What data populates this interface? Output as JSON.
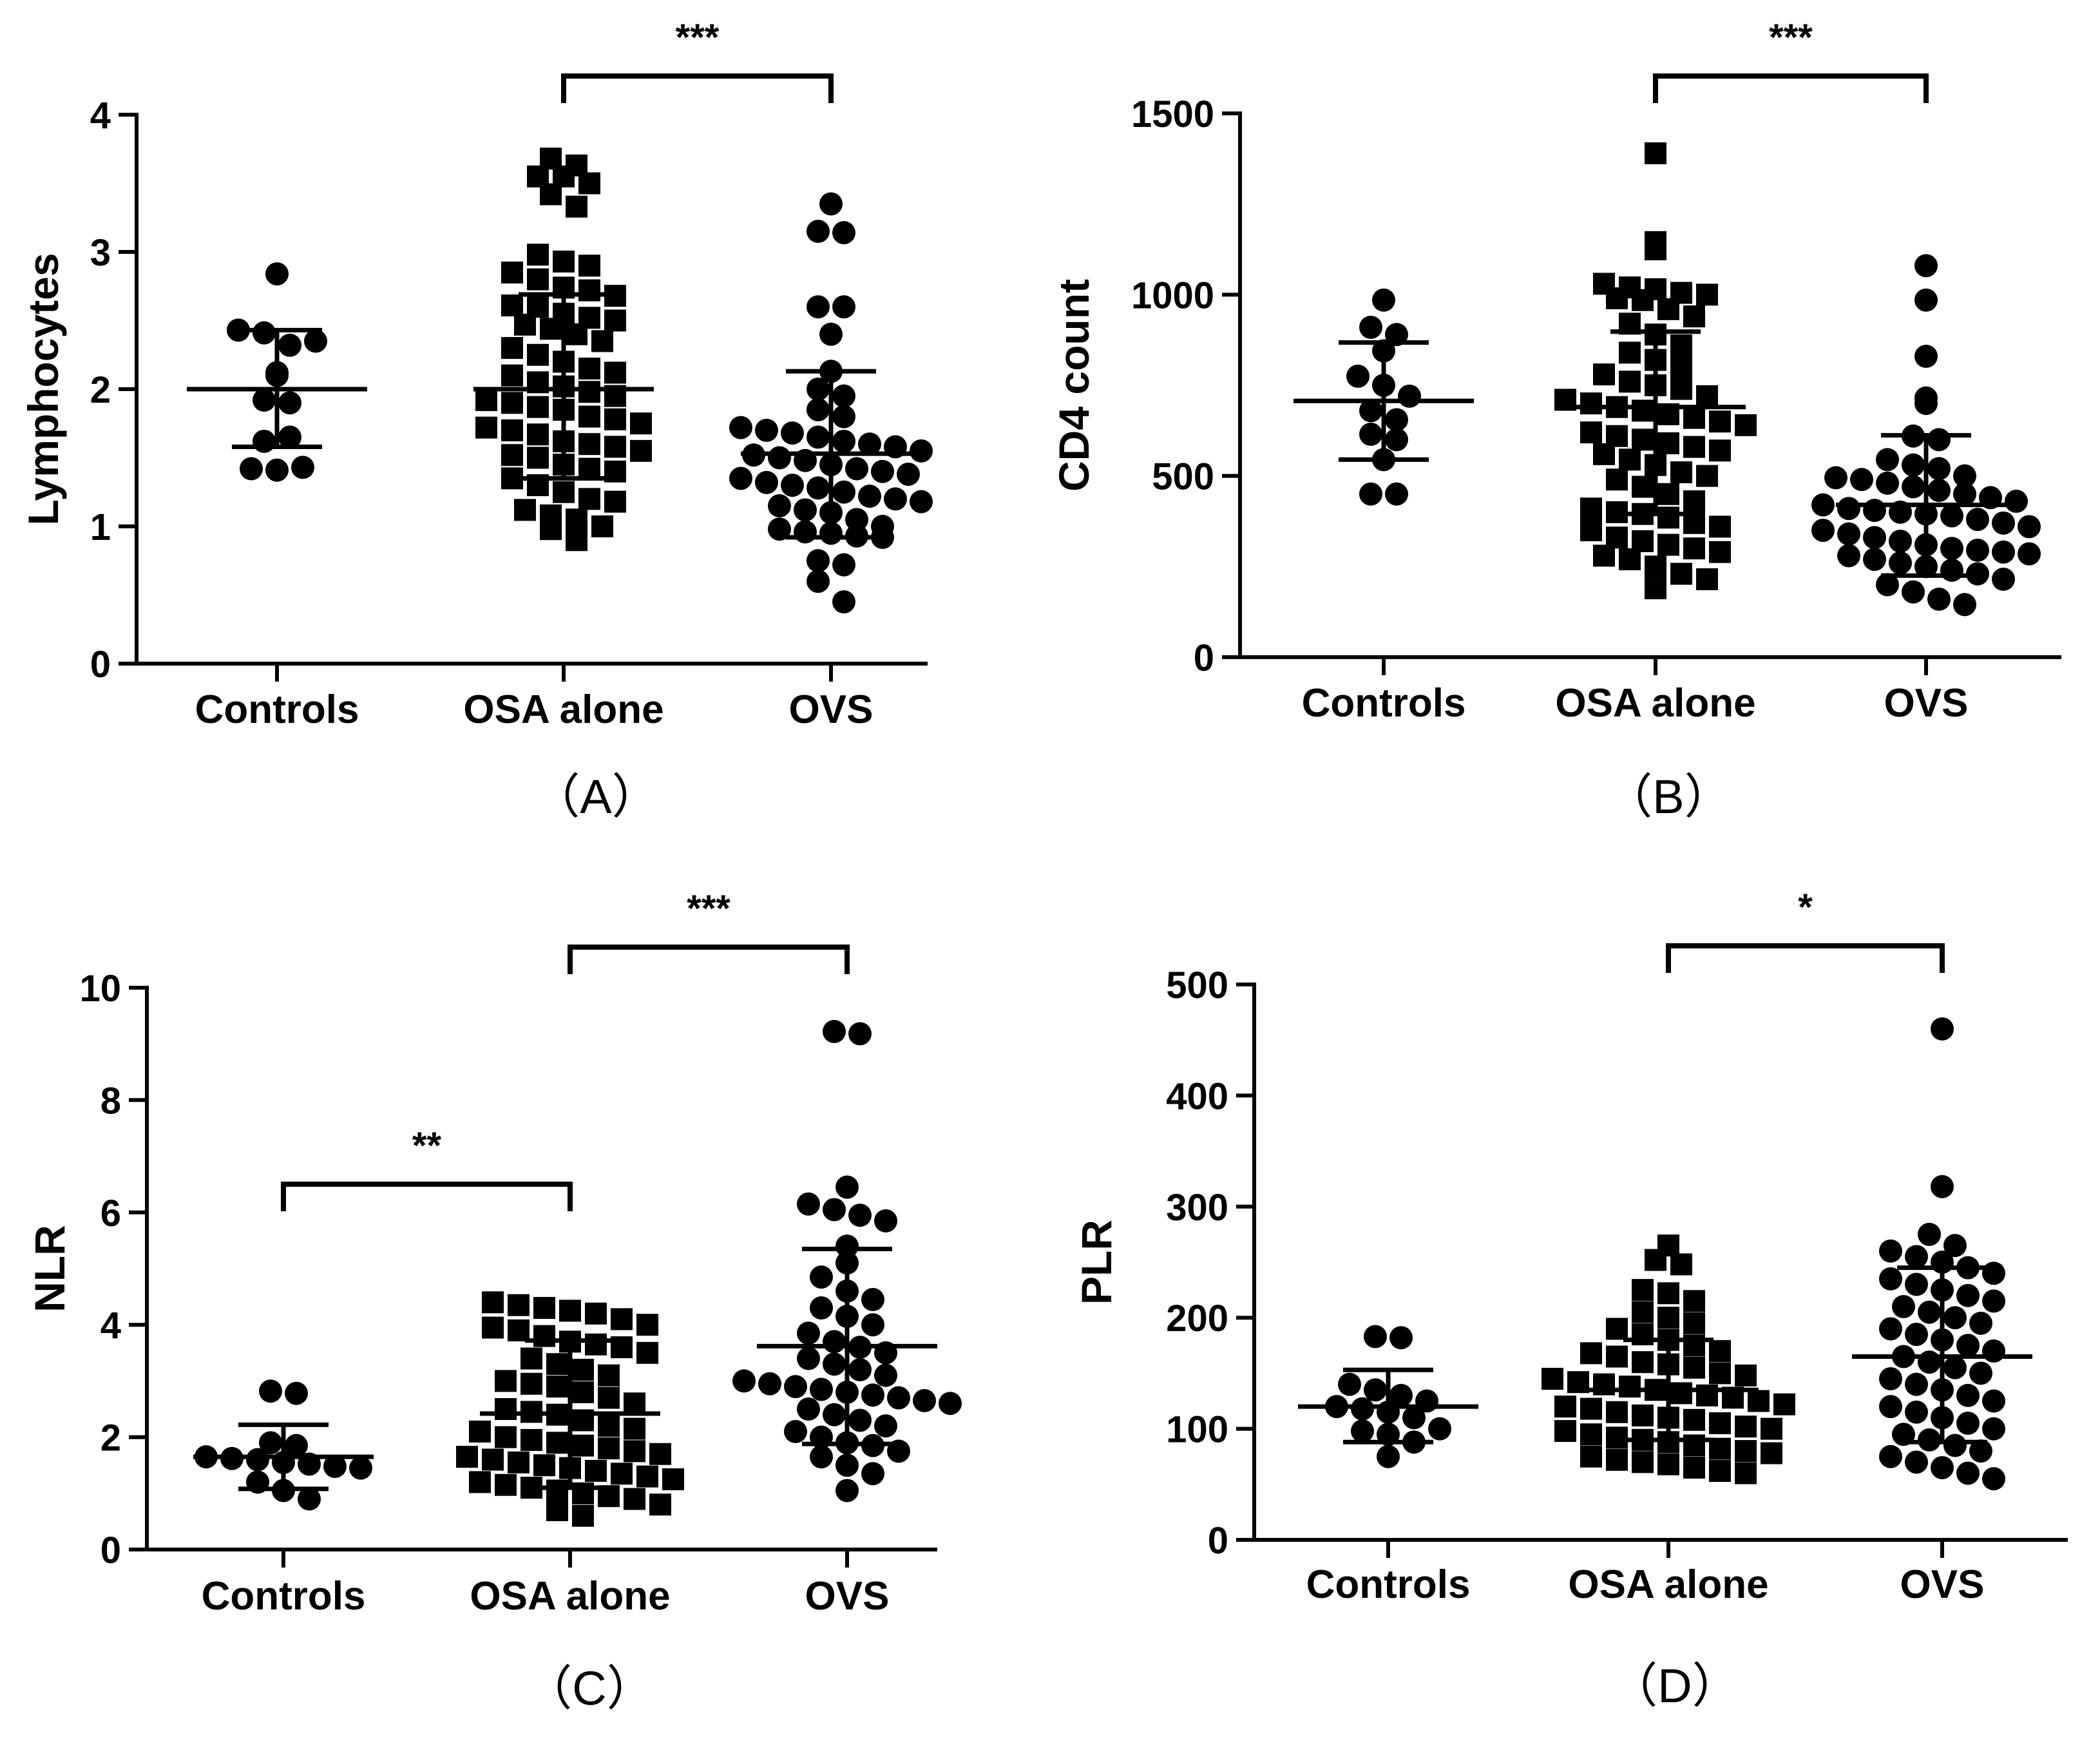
{
  "chart_data": [
    {
      "panel": "A",
      "panel_label": "（A）",
      "type": "scatter",
      "ylabel": "Lymphocytes",
      "ylim": [
        0,
        4
      ],
      "yticks": [
        "0",
        "1",
        "2",
        "3",
        "4"
      ],
      "categories": [
        "Controls",
        "OSA alone",
        "OVS"
      ],
      "markers": [
        "circle",
        "square",
        "circle"
      ],
      "groups": [
        {
          "name": "Controls",
          "mean": 2.0,
          "sd_low": 1.58,
          "sd_high": 2.43,
          "values": [
            2.84,
            2.43,
            2.41,
            2.32,
            2.35,
            2.12,
            2.1,
            1.92,
            1.9,
            1.62,
            1.65,
            1.42,
            1.41,
            1.43
          ]
        },
        {
          "name": "OSA alone",
          "mean": 2.0,
          "sd_low": 1.35,
          "sd_high": 2.69,
          "values": [
            3.68,
            3.63,
            3.55,
            3.55,
            3.5,
            3.42,
            3.33,
            2.98,
            2.93,
            2.9,
            2.85,
            2.8,
            2.74,
            2.72,
            2.68,
            2.61,
            2.6,
            2.55,
            2.52,
            2.5,
            2.47,
            2.44,
            2.4,
            2.35,
            2.3,
            2.25,
            2.2,
            2.15,
            2.12,
            2.1,
            2.05,
            2.02,
            1.98,
            1.95,
            1.92,
            1.9,
            1.87,
            1.85,
            1.8,
            1.78,
            1.75,
            1.72,
            1.7,
            1.67,
            1.62,
            1.6,
            1.58,
            1.55,
            1.52,
            1.5,
            1.45,
            1.42,
            1.4,
            1.35,
            1.3,
            1.25,
            1.2,
            1.18,
            1.12,
            1.08,
            1.05,
            1.0,
            0.98,
            0.9
          ]
        },
        {
          "name": "OVS",
          "mean": 1.53,
          "sd_low": 0.92,
          "sd_high": 2.13,
          "values": [
            3.35,
            3.15,
            3.14,
            2.6,
            2.6,
            2.4,
            2.13,
            2.0,
            1.95,
            1.85,
            1.8,
            1.72,
            1.7,
            1.68,
            1.65,
            1.62,
            1.6,
            1.58,
            1.55,
            1.52,
            1.5,
            1.48,
            1.45,
            1.42,
            1.4,
            1.38,
            1.35,
            1.32,
            1.3,
            1.28,
            1.25,
            1.22,
            1.2,
            1.18,
            1.15,
            1.12,
            1.1,
            1.05,
            1.0,
            0.98,
            0.96,
            0.95,
            0.93,
            0.92,
            0.75,
            0.72,
            0.6,
            0.45
          ]
        }
      ],
      "comparisons": [
        {
          "from": "OSA alone",
          "to": "OVS",
          "label": "***"
        }
      ]
    },
    {
      "panel": "B",
      "panel_label": "（B）",
      "type": "scatter",
      "ylabel": "CD4 count",
      "ylim": [
        0,
        1500
      ],
      "yticks": [
        "0",
        "500",
        "1000",
        "1500"
      ],
      "categories": [
        "Controls",
        "OSA alone",
        "OVS"
      ],
      "markers": [
        "circle",
        "square",
        "circle"
      ],
      "groups": [
        {
          "name": "Controls",
          "mean": 707,
          "sd_low": 545,
          "sd_high": 868,
          "values": [
            985,
            910,
            890,
            845,
            775,
            750,
            720,
            680,
            655,
            615,
            600,
            545,
            450,
            450
          ]
        },
        {
          "name": "OSA alone",
          "mean": 690,
          "sd_low": 395,
          "sd_high": 898,
          "values": [
            1390,
            1145,
            1125,
            1030,
            1020,
            1015,
            1005,
            1000,
            990,
            985,
            960,
            940,
            920,
            890,
            860,
            840,
            820,
            800,
            780,
            760,
            750,
            740,
            720,
            710,
            700,
            690,
            680,
            670,
            660,
            650,
            640,
            620,
            610,
            600,
            590,
            580,
            570,
            560,
            545,
            530,
            510,
            500,
            490,
            470,
            450,
            430,
            410,
            400,
            395,
            385,
            370,
            360,
            350,
            330,
            320,
            310,
            300,
            290,
            280,
            270,
            250,
            230,
            215,
            190
          ]
        },
        {
          "name": "OVS",
          "mean": 420,
          "sd_low": 225,
          "sd_high": 612,
          "values": [
            1080,
            985,
            830,
            715,
            700,
            610,
            600,
            545,
            530,
            520,
            500,
            495,
            490,
            480,
            470,
            460,
            450,
            440,
            430,
            420,
            410,
            405,
            400,
            395,
            390,
            380,
            370,
            360,
            350,
            340,
            330,
            320,
            310,
            300,
            295,
            290,
            285,
            280,
            270,
            260,
            250,
            240,
            230,
            215,
            200,
            180,
            160,
            145
          ]
        }
      ],
      "comparisons": [
        {
          "from": "OSA alone",
          "to": "OVS",
          "label": "***"
        }
      ]
    },
    {
      "panel": "C",
      "panel_label": "（C）",
      "type": "scatter",
      "ylabel": "NLR",
      "ylim": [
        0,
        10
      ],
      "yticks": [
        "0",
        "2",
        "4",
        "6",
        "8",
        "10"
      ],
      "categories": [
        "Controls",
        "OSA alone",
        "OVS"
      ],
      "markers": [
        "circle",
        "square",
        "circle"
      ],
      "groups": [
        {
          "name": "Controls",
          "mean": 1.65,
          "sd_low": 1.08,
          "sd_high": 2.22,
          "values": [
            2.82,
            2.78,
            1.9,
            1.85,
            1.65,
            1.62,
            1.6,
            1.55,
            1.52,
            1.48,
            1.45,
            1.2,
            1.05,
            0.9
          ]
        },
        {
          "name": "OSA alone",
          "mean": 2.42,
          "sd_low": 1.1,
          "sd_high": 3.72,
          "values": [
            4.4,
            4.35,
            4.3,
            4.25,
            4.2,
            4.1,
            4.0,
            3.95,
            3.9,
            3.8,
            3.7,
            3.65,
            3.6,
            3.5,
            3.4,
            3.3,
            3.2,
            3.1,
            3.0,
            2.95,
            2.9,
            2.8,
            2.7,
            2.6,
            2.5,
            2.45,
            2.4,
            2.3,
            2.2,
            2.15,
            2.1,
            2.0,
            1.95,
            1.9,
            1.85,
            1.8,
            1.75,
            1.7,
            1.65,
            1.6,
            1.55,
            1.5,
            1.45,
            1.4,
            1.35,
            1.3,
            1.25,
            1.2,
            1.15,
            1.1,
            1.05,
            1.0,
            0.95,
            0.9,
            0.8,
            0.7,
            0.6
          ]
        },
        {
          "name": "OVS",
          "mean": 3.62,
          "sd_low": 1.88,
          "sd_high": 5.35,
          "values": [
            9.22,
            9.18,
            6.45,
            6.15,
            6.05,
            5.95,
            5.85,
            5.4,
            5.1,
            4.85,
            4.6,
            4.45,
            4.3,
            4.15,
            4.0,
            3.85,
            3.7,
            3.6,
            3.5,
            3.4,
            3.3,
            3.2,
            3.1,
            3.0,
            2.95,
            2.9,
            2.85,
            2.8,
            2.75,
            2.7,
            2.65,
            2.6,
            2.5,
            2.4,
            2.3,
            2.2,
            2.1,
            2.0,
            1.9,
            1.85,
            1.75,
            1.65,
            1.5,
            1.35,
            1.05
          ]
        }
      ],
      "comparisons": [
        {
          "from": "Controls",
          "to": "OSA alone",
          "label": "**"
        },
        {
          "from": "OSA alone",
          "to": "OVS",
          "label": "***"
        }
      ]
    },
    {
      "panel": "D",
      "panel_label": "（D）",
      "type": "scatter",
      "ylabel": "PLR",
      "ylim": [
        0,
        500
      ],
      "yticks": [
        "0",
        "100",
        "200",
        "300",
        "400",
        "500"
      ],
      "categories": [
        "Controls",
        "OSA alone",
        "OVS"
      ],
      "markers": [
        "circle",
        "square",
        "circle"
      ],
      "groups": [
        {
          "name": "Controls",
          "mean": 120,
          "sd_low": 88,
          "sd_high": 153,
          "values": [
            183,
            182,
            140,
            135,
            130,
            125,
            120,
            118,
            115,
            110,
            100,
            98,
            95,
            88,
            75
          ]
        },
        {
          "name": "OSA alone",
          "mean": 135,
          "sd_low": 90,
          "sd_high": 180,
          "values": [
            265,
            252,
            248,
            225,
            222,
            215,
            205,
            200,
            195,
            190,
            185,
            180,
            175,
            170,
            168,
            165,
            160,
            158,
            155,
            150,
            148,
            145,
            142,
            140,
            138,
            135,
            132,
            130,
            128,
            125,
            122,
            120,
            118,
            115,
            112,
            110,
            108,
            105,
            102,
            100,
            98,
            95,
            92,
            90,
            88,
            85,
            82,
            80,
            78,
            75,
            72,
            70,
            68,
            65,
            62,
            60
          ]
        },
        {
          "name": "OVS",
          "mean": 165,
          "sd_low": 88,
          "sd_high": 245,
          "values": [
            460,
            318,
            275,
            265,
            260,
            255,
            250,
            245,
            240,
            235,
            230,
            225,
            220,
            215,
            210,
            205,
            200,
            195,
            190,
            185,
            180,
            175,
            170,
            165,
            160,
            155,
            150,
            145,
            140,
            135,
            130,
            125,
            120,
            115,
            110,
            105,
            100,
            95,
            90,
            85,
            80,
            75,
            70,
            65,
            60,
            55
          ]
        }
      ],
      "comparisons": [
        {
          "from": "OSA alone",
          "to": "OVS",
          "label": "*"
        }
      ]
    }
  ]
}
